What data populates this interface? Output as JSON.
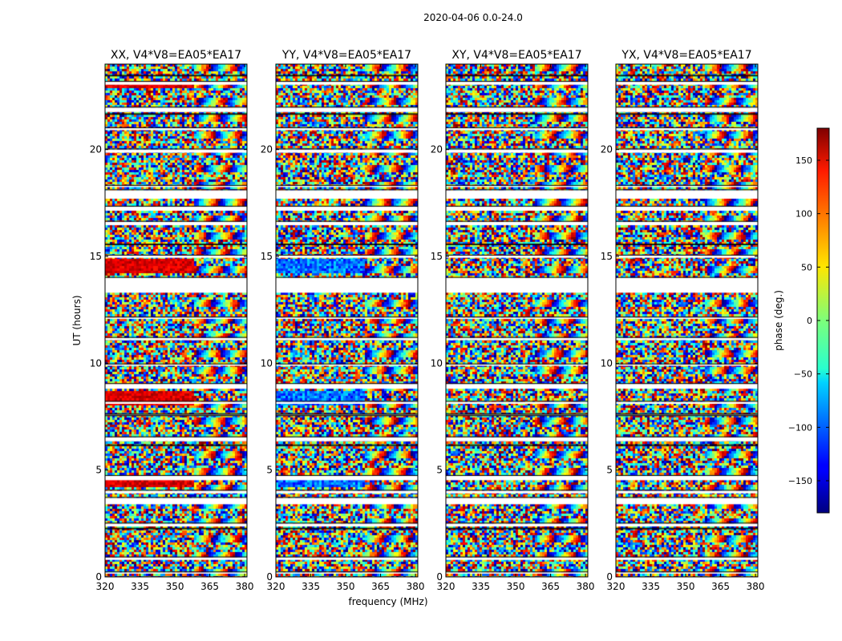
{
  "figure": {
    "suptitle": "2020-04-06 0.0-24.0"
  },
  "colors": {
    "frame": "#000000",
    "background": "#ffffff",
    "colormap": "jet"
  },
  "chart_data": {
    "type": "heatmap",
    "title": "2020-04-06 0.0-24.0",
    "xlabel": "frequency (MHz)",
    "ylabel": "UT (hours)",
    "xlim": [
      320,
      381
    ],
    "ylim": [
      0,
      24
    ],
    "xticks": [
      "320",
      "335",
      "350",
      "365",
      "380"
    ],
    "yticks": [
      "0",
      "5",
      "10",
      "15",
      "20"
    ],
    "panels": [
      {
        "title": "XX, V4*V8=EA05*EA17",
        "polarization": "XX"
      },
      {
        "title": "YY, V4*V8=EA05*EA17",
        "polarization": "YY"
      },
      {
        "title": "XY, V4*V8=EA05*EA17",
        "polarization": "XY"
      },
      {
        "title": "YX, V4*V8=EA05*EA17",
        "polarization": "YX"
      }
    ],
    "colorbar": {
      "label": "phase (deg.)",
      "range": [
        -180,
        180
      ],
      "ticks": [
        "150",
        "100",
        "50",
        "0",
        "−50",
        "−100",
        "−150"
      ]
    }
  }
}
